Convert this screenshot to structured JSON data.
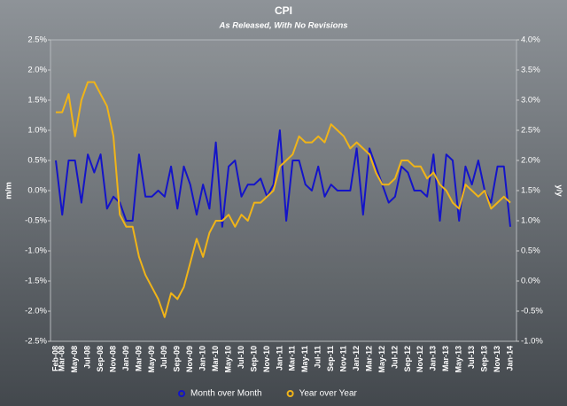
{
  "chart_data": {
    "type": "line",
    "title": "CPI",
    "subtitle": "As Released, With No Revisions",
    "y_label": "m/m",
    "y2_label": "y/y",
    "categories": [
      "Feb-08",
      "Mar-08",
      null,
      "May-08",
      null,
      "Jul-08",
      null,
      "Sep-08",
      null,
      "Nov-08",
      null,
      "Jan-09",
      null,
      "Mar-09",
      null,
      "May-09",
      null,
      "Jul-09",
      null,
      "Sep-09",
      null,
      "Nov-09",
      null,
      "Jan-10",
      null,
      "Mar-10",
      null,
      "May-10",
      null,
      "Jul-10",
      null,
      "Sep-10",
      null,
      "Nov-10",
      null,
      "Jan-11",
      null,
      "Mar-11",
      null,
      "May-11",
      null,
      "Jul-11",
      null,
      "Sep-11",
      null,
      "Nov-11",
      null,
      "Jan-12",
      null,
      "Mar-12",
      null,
      "May-12",
      null,
      "Jul-12",
      null,
      "Sep-12",
      null,
      "Nov-12",
      null,
      "Jan-13",
      null,
      "Mar-13",
      null,
      "May-13",
      null,
      "Jul-13",
      null,
      "Sep-13",
      null,
      "Nov-13",
      null,
      "Jan-14"
    ],
    "series": [
      {
        "name": "Month over Month",
        "color": "#1414c8",
        "axis": "y",
        "values": [
          0.5,
          -0.4,
          0.5,
          0.5,
          -0.2,
          0.6,
          0.3,
          0.6,
          -0.3,
          -0.1,
          -0.2,
          -0.5,
          -0.5,
          0.6,
          -0.1,
          -0.1,
          0.0,
          -0.1,
          0.4,
          -0.3,
          0.4,
          0.1,
          -0.4,
          0.1,
          -0.3,
          0.8,
          -0.6,
          0.4,
          0.5,
          -0.1,
          0.1,
          0.1,
          0.2,
          -0.1,
          0.1,
          1.0,
          -0.5,
          0.5,
          0.5,
          0.1,
          0.0,
          0.4,
          -0.1,
          0.1,
          0.0,
          0.0,
          0.0,
          0.7,
          -0.4,
          0.7,
          0.4,
          0.1,
          -0.2,
          -0.1,
          0.4,
          0.3,
          0.0,
          0.0,
          -0.1,
          0.6,
          -0.5,
          0.6,
          0.5,
          -0.5,
          0.4,
          0.1,
          0.5,
          0.0,
          -0.2,
          0.4,
          0.4,
          -0.6
        ]
      },
      {
        "name": "Year over Year",
        "color": "#f0b418",
        "axis": "y2",
        "values": [
          2.8,
          2.8,
          3.1,
          2.4,
          3.0,
          3.3,
          3.3,
          3.1,
          2.9,
          2.4,
          1.1,
          0.9,
          0.9,
          0.4,
          0.1,
          -0.1,
          -0.3,
          -0.6,
          -0.2,
          -0.3,
          -0.1,
          0.3,
          0.7,
          0.4,
          0.8,
          1.0,
          1.0,
          1.1,
          0.9,
          1.1,
          1.0,
          1.3,
          1.3,
          1.4,
          1.5,
          1.9,
          2.0,
          2.1,
          2.4,
          2.3,
          2.3,
          2.4,
          2.3,
          2.6,
          2.5,
          2.4,
          2.2,
          2.3,
          2.2,
          2.1,
          1.8,
          1.6,
          1.6,
          1.7,
          2.0,
          2.0,
          1.9,
          1.9,
          1.7,
          1.8,
          1.6,
          1.5,
          1.3,
          1.2,
          1.6,
          1.5,
          1.4,
          1.5,
          1.2,
          1.3,
          1.4,
          1.3
        ]
      }
    ],
    "ylim": [
      -2.5,
      2.5
    ],
    "yticks": [
      {
        "value": -2.5,
        "label": "-2.5%"
      },
      {
        "value": -2.0,
        "label": "-2.0%"
      },
      {
        "value": -1.5,
        "label": "-1.5%"
      },
      {
        "value": -1.0,
        "label": "-1.0%"
      },
      {
        "value": -0.5,
        "label": "-0.5%"
      },
      {
        "value": 0,
        "label": "0.0%"
      },
      {
        "value": 0.5,
        "label": "0.5%"
      },
      {
        "value": 1.0,
        "label": "1.0%"
      },
      {
        "value": 1.5,
        "label": "1.5%"
      },
      {
        "value": 2.0,
        "label": "2.0%"
      },
      {
        "value": 2.5,
        "label": "2.5%"
      }
    ],
    "y2lim": [
      -1,
      4
    ],
    "y2ticks": [
      {
        "value": -1,
        "label": "-1.0%"
      },
      {
        "value": -0.5,
        "label": "-0.5%"
      },
      {
        "value": 0,
        "label": "0.0%"
      },
      {
        "value": 0.5,
        "label": "0.5%"
      },
      {
        "value": 1,
        "label": "1.0%"
      },
      {
        "value": 1.5,
        "label": "1.5%"
      },
      {
        "value": 2,
        "label": "2.0%"
      },
      {
        "value": 2.5,
        "label": "2.5%"
      },
      {
        "value": 3,
        "label": "3.0%"
      },
      {
        "value": 3.5,
        "label": "3.5%"
      },
      {
        "value": 4,
        "label": "4.0%"
      }
    ],
    "grid": false,
    "legend": "bottom"
  }
}
